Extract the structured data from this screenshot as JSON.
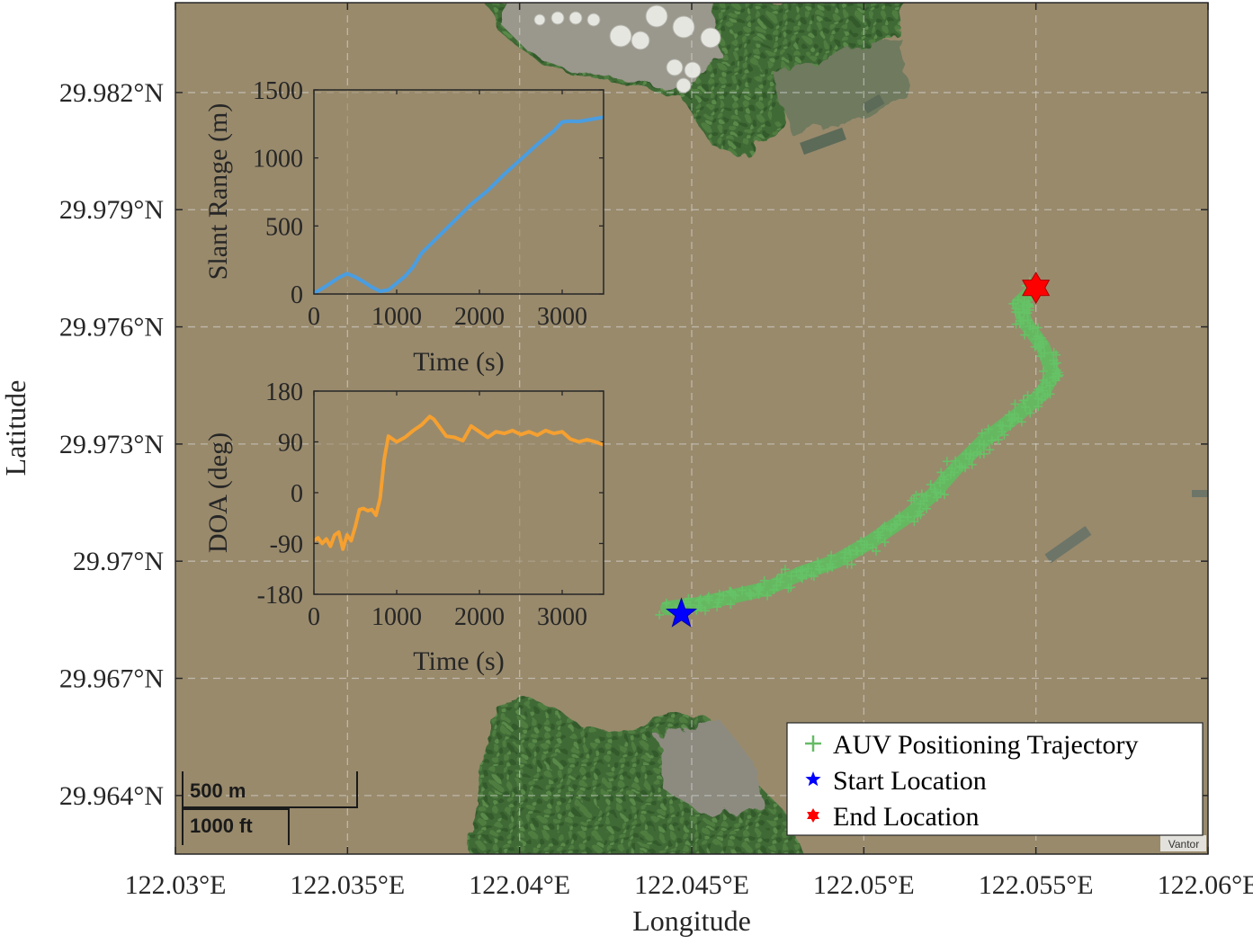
{
  "chart_data": [
    {
      "type": "scatter",
      "xlabel": "Longitude",
      "ylabel": "Latitude",
      "x_ticks": [
        "122.03°E",
        "122.035°E",
        "122.04°E",
        "122.045°E",
        "122.05°E",
        "122.055°E",
        "122.06°E"
      ],
      "y_ticks": [
        "29.982°N",
        "29.979°N",
        "29.976°N",
        "29.973°N",
        "29.97°N",
        "29.967°N",
        "29.964°N"
      ],
      "xlim": [
        122.03,
        122.06
      ],
      "ylim": [
        29.9625,
        29.9843
      ],
      "grid": true,
      "basemap": "satellite",
      "legend_position": "bottom-right",
      "legend": [
        {
          "label": "AUV Positioning Trajectory",
          "marker": "+",
          "color": "#66bb66"
        },
        {
          "label": "Start Location",
          "marker": "star",
          "color": "#0000ff"
        },
        {
          "label": "End Location",
          "marker": "hexagram",
          "color": "#ff0000"
        }
      ],
      "series": [
        {
          "name": "AUV Positioning Trajectory",
          "points": [
            [
              122.0443,
              29.9688
            ],
            [
              122.0452,
              29.9689
            ],
            [
              122.0462,
              29.9691
            ],
            [
              122.0472,
              29.9693
            ],
            [
              122.0482,
              29.9697
            ],
            [
              122.0492,
              29.97
            ],
            [
              122.0502,
              29.9705
            ],
            [
              122.0512,
              29.9711
            ],
            [
              122.052,
              29.9717
            ],
            [
              122.0527,
              29.9724
            ],
            [
              122.0535,
              29.9731
            ],
            [
              122.0544,
              29.9737
            ],
            [
              122.0552,
              29.9743
            ],
            [
              122.0555,
              29.9748
            ],
            [
              122.0552,
              29.9755
            ],
            [
              122.0547,
              29.9761
            ],
            [
              122.0545,
              29.9766
            ],
            [
              122.055,
              29.977
            ]
          ]
        },
        {
          "name": "Start Location",
          "points": [
            [
              122.0447,
              29.96865
            ]
          ]
        },
        {
          "name": "End Location",
          "points": [
            [
              122.055,
              29.977
            ]
          ]
        }
      ],
      "scalebar": {
        "metric": "500 m",
        "imperial": "1000 ft"
      },
      "attribution": "Vantor"
    },
    {
      "type": "line",
      "xlabel": "Time (s)",
      "ylabel": "Slant Range (m)",
      "xlim": [
        0,
        3500
      ],
      "ylim": [
        0,
        1500
      ],
      "x_ticks": [
        "0",
        "1000",
        "2000",
        "3000"
      ],
      "y_ticks": [
        "0",
        "500",
        "1000",
        "1500"
      ],
      "color": "#4a9de0",
      "series": [
        {
          "x": [
            0,
            100,
            200,
            300,
            400,
            500,
            600,
            700,
            800,
            900,
            1000,
            1100,
            1200,
            1300,
            1400,
            1500,
            1700,
            1900,
            2100,
            2300,
            2500,
            2700,
            2900,
            3000,
            3100,
            3200,
            3300,
            3500
          ],
          "y": [
            5,
            40,
            80,
            120,
            150,
            125,
            90,
            50,
            20,
            30,
            80,
            130,
            200,
            300,
            360,
            420,
            540,
            660,
            760,
            880,
            990,
            1100,
            1200,
            1265,
            1270,
            1268,
            1278,
            1300
          ]
        }
      ]
    },
    {
      "type": "line",
      "xlabel": "Time (s)",
      "ylabel": "DOA (deg)",
      "xlim": [
        0,
        3500
      ],
      "ylim": [
        -180,
        180
      ],
      "x_ticks": [
        "0",
        "1000",
        "2000",
        "3000"
      ],
      "y_ticks": [
        "-180",
        "-90",
        "0",
        "90",
        "180"
      ],
      "color": "#f5a030",
      "series": [
        {
          "x": [
            0,
            50,
            100,
            150,
            200,
            250,
            300,
            350,
            400,
            450,
            500,
            550,
            600,
            650,
            700,
            750,
            800,
            850,
            900,
            950,
            1000,
            1100,
            1200,
            1300,
            1400,
            1450,
            1500,
            1600,
            1700,
            1800,
            1900,
            2000,
            2100,
            2200,
            2300,
            2400,
            2500,
            2600,
            2700,
            2800,
            2900,
            3000,
            3100,
            3200,
            3300,
            3400,
            3500
          ],
          "y": [
            -85,
            -80,
            -90,
            -82,
            -95,
            -75,
            -70,
            -100,
            -75,
            -85,
            -60,
            -30,
            -28,
            -32,
            -30,
            -40,
            -10,
            60,
            100,
            95,
            90,
            98,
            110,
            120,
            135,
            130,
            120,
            100,
            98,
            92,
            118,
            108,
            98,
            108,
            105,
            110,
            103,
            108,
            102,
            110,
            105,
            108,
            95,
            90,
            94,
            90,
            85
          ]
        }
      ]
    }
  ]
}
